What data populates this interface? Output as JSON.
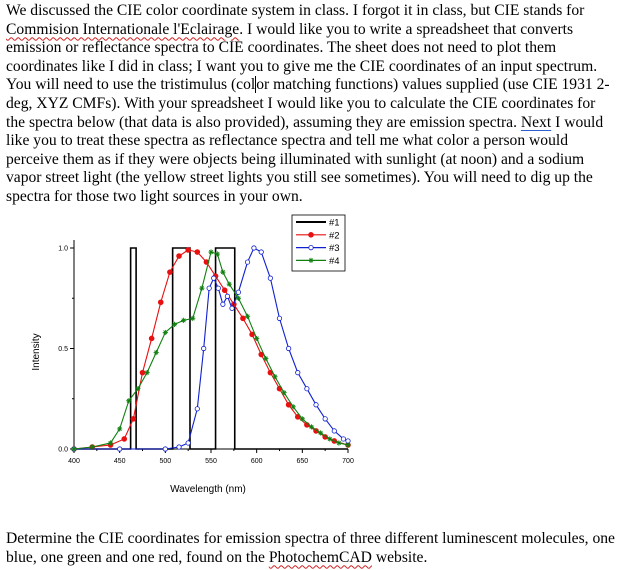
{
  "intro": {
    "s1": "We discussed the CIE color coordinate system in class.  I forgot it in class, but CIE stands for ",
    "commission": "Commision Internationale l'Eclairage",
    "s2": ".  I would like you to write a spreadsheet that converts emission or reflectance spectra to CIE coordinates.  The sheet does not need to plot them coordinates like I did in class; I want you to give me the CIE coordinates of an input spectrum.  You will need to use the tristimulus (col",
    "s3": "or matching functions) values supplied (use CIE 1931 2-deg, XYZ CMFs).  With your spreadsheet I would like you to calculate the CIE coordinates for the spectra below (that data is also provided), assuming they are emission spectra.  ",
    "next": "Next",
    "s4": " I would like you to treat these spectra as reflectance spectra and tell me what color a person would perceive them as if they were objects being illuminated with sunlight (at noon) and a sodium vapor street light (the yellow street lights you still see sometimes).  You will need to dig up the spectra for those two light sources in your own."
  },
  "footer": {
    "s1": "Determine the CIE coordinates for emission spectra of three different luminescent molecules, one blue, one green and one red, found on the ",
    "site": "PhotochemCAD",
    "s2": " website."
  },
  "chart_data": {
    "type": "line",
    "xlabel": "Wavelength (nm)",
    "ylabel": "Intensity",
    "xlim": [
      400,
      700
    ],
    "ylim": [
      0,
      1.0
    ],
    "xticks": [
      "400",
      "450",
      "500",
      "550",
      "600",
      "650",
      "700"
    ],
    "yticks": [
      "0.0",
      "0.5",
      "1.0"
    ],
    "legend_position": "top-right",
    "series": [
      {
        "name": "#1",
        "color": "#000000",
        "marker": "none",
        "points": [
          [
            400,
            0
          ],
          [
            462,
            0
          ],
          [
            462,
            1.0
          ],
          [
            468,
            1.0
          ],
          [
            468,
            0
          ],
          [
            508,
            0
          ],
          [
            508,
            1.0
          ],
          [
            527,
            1.0
          ],
          [
            527,
            0
          ],
          [
            555,
            0
          ],
          [
            555,
            1.0
          ],
          [
            576,
            1.0
          ],
          [
            576,
            0
          ],
          [
            700,
            0
          ]
        ]
      },
      {
        "name": "#2",
        "color": "#e81010",
        "marker": "filled-circle",
        "points": [
          [
            400,
            0
          ],
          [
            420,
            0.01
          ],
          [
            440,
            0.02
          ],
          [
            455,
            0.05
          ],
          [
            465,
            0.15
          ],
          [
            475,
            0.38
          ],
          [
            485,
            0.55
          ],
          [
            495,
            0.73
          ],
          [
            505,
            0.88
          ],
          [
            515,
            0.96
          ],
          [
            525,
            0.99
          ],
          [
            535,
            0.98
          ],
          [
            545,
            0.93
          ],
          [
            555,
            0.86
          ],
          [
            565,
            0.79
          ],
          [
            575,
            0.72
          ],
          [
            585,
            0.65
          ],
          [
            595,
            0.57
          ],
          [
            605,
            0.47
          ],
          [
            615,
            0.38
          ],
          [
            625,
            0.3
          ],
          [
            635,
            0.22
          ],
          [
            645,
            0.16
          ],
          [
            655,
            0.12
          ],
          [
            665,
            0.09
          ],
          [
            675,
            0.06
          ],
          [
            685,
            0.04
          ],
          [
            700,
            0.02
          ]
        ]
      },
      {
        "name": "#3",
        "color": "#1020d0",
        "marker": "open-circle",
        "points": [
          [
            400,
            0
          ],
          [
            450,
            0
          ],
          [
            500,
            0
          ],
          [
            515,
            0.01
          ],
          [
            525,
            0.03
          ],
          [
            535,
            0.2
          ],
          [
            542,
            0.5
          ],
          [
            548,
            0.8
          ],
          [
            553,
            0.85
          ],
          [
            558,
            0.8
          ],
          [
            563,
            0.72
          ],
          [
            568,
            0.76
          ],
          [
            573,
            0.7
          ],
          [
            580,
            0.78
          ],
          [
            590,
            0.93
          ],
          [
            597,
            1.0
          ],
          [
            605,
            0.98
          ],
          [
            615,
            0.85
          ],
          [
            625,
            0.65
          ],
          [
            635,
            0.5
          ],
          [
            645,
            0.38
          ],
          [
            655,
            0.3
          ],
          [
            665,
            0.22
          ],
          [
            675,
            0.15
          ],
          [
            685,
            0.09
          ],
          [
            695,
            0.05
          ],
          [
            700,
            0.04
          ]
        ]
      },
      {
        "name": "#4",
        "color": "#108010",
        "marker": "star",
        "points": [
          [
            400,
            0
          ],
          [
            420,
            0.01
          ],
          [
            440,
            0.03
          ],
          [
            450,
            0.1
          ],
          [
            460,
            0.24
          ],
          [
            470,
            0.3
          ],
          [
            480,
            0.38
          ],
          [
            490,
            0.48
          ],
          [
            500,
            0.58
          ],
          [
            510,
            0.62
          ],
          [
            520,
            0.64
          ],
          [
            530,
            0.65
          ],
          [
            540,
            0.8
          ],
          [
            550,
            0.98
          ],
          [
            557,
            0.97
          ],
          [
            563,
            0.88
          ],
          [
            570,
            0.82
          ],
          [
            580,
            0.75
          ],
          [
            590,
            0.66
          ],
          [
            600,
            0.55
          ],
          [
            610,
            0.45
          ],
          [
            620,
            0.36
          ],
          [
            630,
            0.28
          ],
          [
            640,
            0.21
          ],
          [
            650,
            0.15
          ],
          [
            660,
            0.11
          ],
          [
            670,
            0.08
          ],
          [
            680,
            0.05
          ],
          [
            690,
            0.03
          ],
          [
            700,
            0.02
          ]
        ]
      }
    ]
  }
}
